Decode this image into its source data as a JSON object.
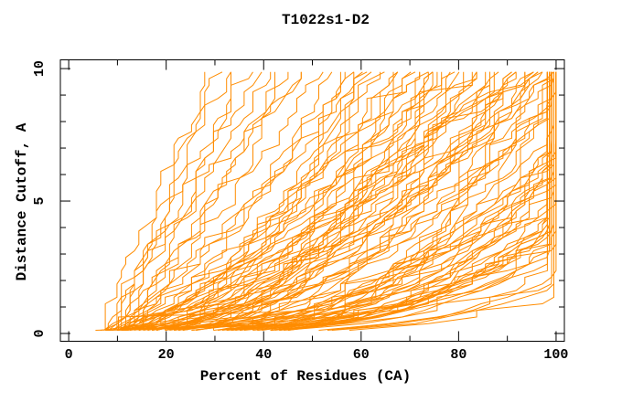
{
  "chart_data": {
    "type": "line",
    "title": "T1022s1-D2",
    "xlabel": "Percent of Residues (CA)",
    "ylabel": "Distance Cutoff, A",
    "xlim": [
      -1.71,
      101.7
    ],
    "ylim": [
      -0.293,
      10.33
    ],
    "x_ticks_major": [
      0,
      20,
      40,
      60,
      80,
      100
    ],
    "x_ticks_minor": [
      10,
      30,
      50,
      70,
      90
    ],
    "y_ticks_major": [
      0,
      5,
      10
    ],
    "y_ticks_minor": [
      1,
      2,
      3,
      4,
      6,
      7,
      8,
      9
    ],
    "grid": false,
    "legend": "none",
    "line_color": "#ff8c00",
    "axis_color": "#000000",
    "background": "#ffffff",
    "curve_y_start": 0.12,
    "curve_y_step": 0.25,
    "curve_points": 40,
    "seed": 20221,
    "curves_note": "each curve = [start_pct_at_cutoff_0, end_pct_at_cutoff_10, shape_exponent]; x clipped at 100",
    "curves": [
      [
        8,
        29,
        1.1
      ],
      [
        9.5,
        31,
        0.9
      ],
      [
        7.5,
        33,
        1.25
      ],
      [
        10,
        35,
        0.8
      ],
      [
        8.5,
        37,
        1.05
      ],
      [
        9,
        39,
        1.3
      ],
      [
        7,
        41,
        0.95
      ],
      [
        10.5,
        43,
        0.85
      ],
      [
        8,
        45,
        1.15
      ],
      [
        9,
        47,
        0.9
      ],
      [
        11,
        49,
        1.0
      ],
      [
        8.5,
        52,
        0.78
      ],
      [
        6,
        54,
        0.55
      ],
      [
        9,
        56,
        0.7
      ],
      [
        7,
        58,
        0.45
      ],
      [
        11,
        60,
        0.85
      ],
      [
        8,
        61,
        0.5
      ],
      [
        10,
        63,
        0.65
      ],
      [
        6.5,
        65,
        0.9
      ],
      [
        9.5,
        66,
        0.42
      ],
      [
        7.5,
        68,
        0.6
      ],
      [
        12,
        70,
        0.75
      ],
      [
        8.5,
        71,
        0.48
      ],
      [
        10.5,
        73,
        0.88
      ],
      [
        6,
        74,
        0.55
      ],
      [
        9,
        76,
        0.4
      ],
      [
        7,
        77,
        0.68
      ],
      [
        11,
        79,
        0.52
      ],
      [
        8,
        80,
        0.8
      ],
      [
        10,
        82,
        0.45
      ],
      [
        6.5,
        83,
        0.62
      ],
      [
        9.5,
        85,
        0.92
      ],
      [
        7.5,
        86,
        0.5
      ],
      [
        12,
        88,
        0.58
      ],
      [
        8.5,
        89,
        0.72
      ],
      [
        10.5,
        91,
        0.44
      ],
      [
        6,
        92,
        0.66
      ],
      [
        9,
        93,
        0.85
      ],
      [
        7,
        94,
        0.48
      ],
      [
        11,
        95,
        0.6
      ],
      [
        8,
        96,
        0.52
      ],
      [
        10,
        97,
        0.76
      ],
      [
        6.5,
        98,
        0.41
      ],
      [
        9.5,
        99,
        0.64
      ],
      [
        7.5,
        100,
        0.55
      ],
      [
        5,
        57,
        0.35
      ],
      [
        5.5,
        72,
        0.3
      ],
      [
        4.5,
        88,
        0.33
      ],
      [
        7,
        101,
        0.38
      ],
      [
        9,
        103,
        0.3
      ],
      [
        6,
        105,
        0.45
      ],
      [
        10,
        107,
        0.28
      ],
      [
        8,
        109,
        0.35
      ],
      [
        11,
        111,
        0.42
      ],
      [
        7.5,
        113,
        0.27
      ],
      [
        9.5,
        115,
        0.33
      ],
      [
        6.5,
        117,
        0.4
      ],
      [
        10.5,
        119,
        0.29
      ],
      [
        8.5,
        121,
        0.36
      ],
      [
        5.5,
        123,
        0.26
      ],
      [
        9,
        125,
        0.44
      ],
      [
        7,
        127,
        0.31
      ],
      [
        10,
        129,
        0.37
      ],
      [
        6,
        100,
        0.25
      ],
      [
        8,
        104,
        0.48
      ],
      [
        11,
        108,
        0.26
      ],
      [
        7.5,
        112,
        0.34
      ],
      [
        9.5,
        116,
        0.25
      ],
      [
        6.5,
        120,
        0.46
      ],
      [
        10.5,
        124,
        0.27
      ],
      [
        8.5,
        128,
        0.39
      ],
      [
        5.5,
        102,
        0.29
      ],
      [
        9,
        106,
        0.5
      ],
      [
        7,
        110,
        0.24
      ],
      [
        10,
        114,
        0.32
      ],
      [
        6,
        118,
        0.28
      ],
      [
        8,
        122,
        0.43
      ],
      [
        11,
        126,
        0.3
      ],
      [
        7,
        135,
        0.34
      ],
      [
        9,
        140,
        0.3
      ],
      [
        6.5,
        146,
        0.38
      ],
      [
        10,
        152,
        0.28
      ],
      [
        8,
        158,
        0.33
      ],
      [
        7.5,
        164,
        0.26
      ],
      [
        9.5,
        150,
        0.4
      ],
      [
        6,
        142,
        0.24
      ],
      [
        5,
        60,
        0.22
      ],
      [
        6,
        66,
        0.2
      ],
      [
        7,
        75,
        0.21
      ],
      [
        5.5,
        81,
        0.23
      ],
      [
        6.5,
        87,
        0.19
      ],
      [
        7.5,
        93,
        0.22
      ],
      [
        8.2,
        64,
        0.58
      ],
      [
        9.8,
        78,
        0.47
      ],
      [
        6.8,
        90,
        0.36
      ],
      [
        10.2,
        98,
        0.31
      ],
      [
        7.2,
        84,
        0.54
      ],
      [
        8.8,
        69,
        0.43
      ],
      [
        5.8,
        96,
        0.27
      ],
      [
        9.2,
        88,
        0.63
      ],
      [
        7.8,
        74,
        0.39
      ],
      [
        10.8,
        92,
        0.5
      ],
      [
        6.2,
        80,
        0.34
      ],
      [
        8.4,
        99,
        0.57
      ],
      [
        9.4,
        131,
        0.32
      ],
      [
        7.4,
        133,
        0.29
      ],
      [
        8.6,
        137,
        0.36
      ],
      [
        6.4,
        144,
        0.31
      ],
      [
        10.4,
        155,
        0.27
      ],
      [
        7.6,
        148,
        0.35
      ]
    ]
  }
}
